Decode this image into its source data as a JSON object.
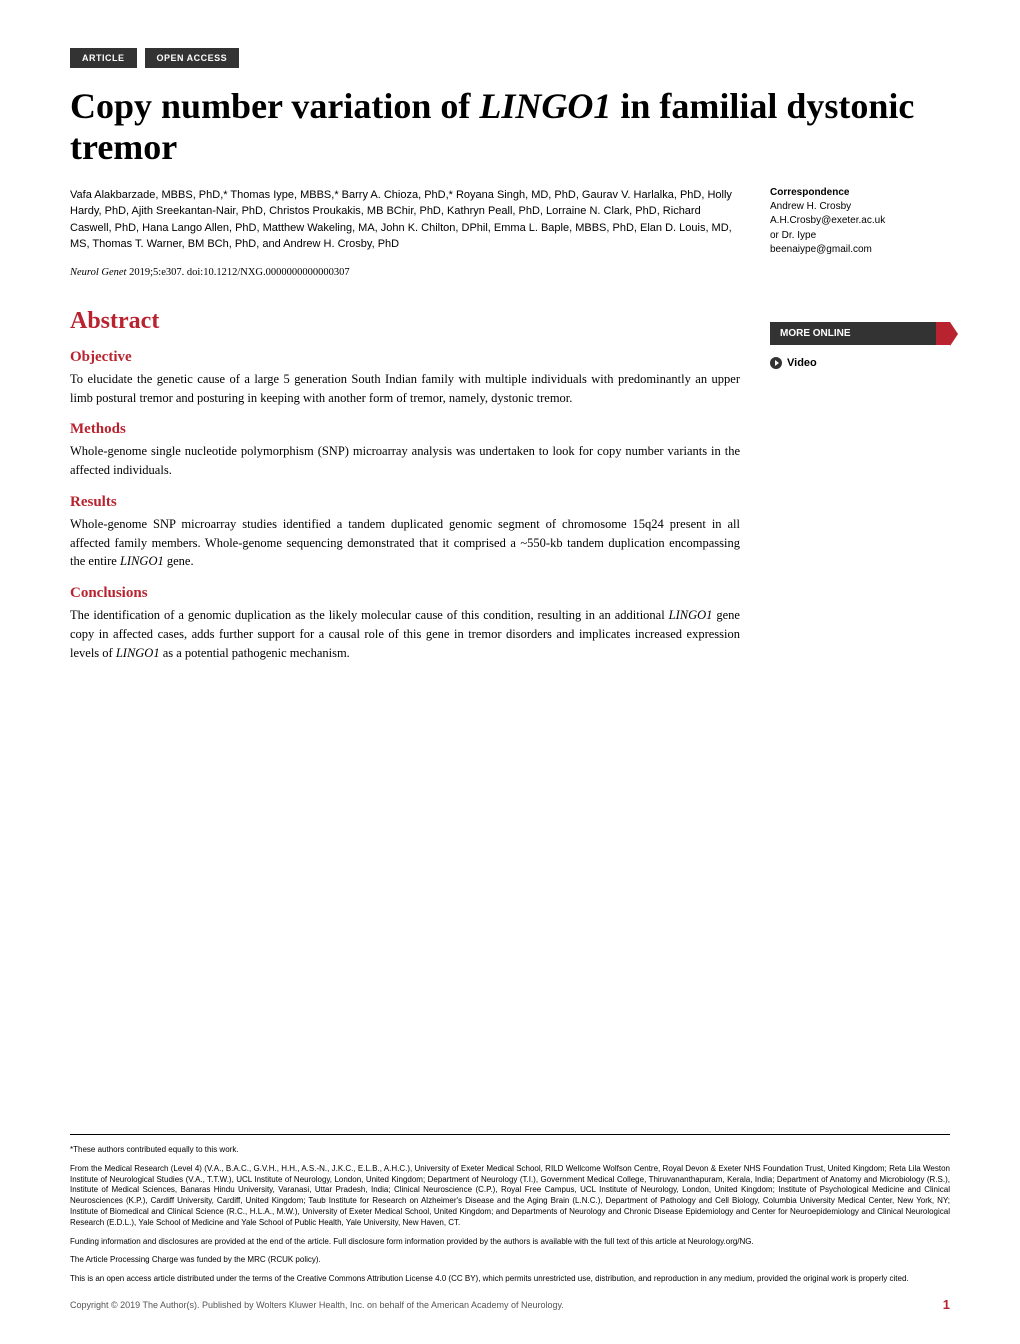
{
  "colors": {
    "accent": "#b8232f",
    "badge_bg": "#333333",
    "text": "#000000",
    "copyright": "#555555",
    "background": "#ffffff"
  },
  "badges": {
    "article": "ARTICLE",
    "open_access": "OPEN ACCESS"
  },
  "title": {
    "pre": "Copy number variation of ",
    "italic": "LINGO1",
    "post": " in familial dystonic tremor"
  },
  "authors": "Vafa Alakbarzade, MBBS, PhD,* Thomas Iype, MBBS,* Barry A. Chioza, PhD,* Royana Singh, MD, PhD, Gaurav V. Harlalka, PhD, Holly Hardy, PhD, Ajith Sreekantan-Nair, PhD, Christos Proukakis, MB BChir, PhD, Kathryn Peall, PhD, Lorraine N. Clark, PhD, Richard Caswell, PhD, Hana Lango Allen, PhD, Matthew Wakeling, MA, John K. Chilton, DPhil, Emma L. Baple, MBBS, PhD, Elan D. Louis, MD, MS, Thomas T. Warner, BM BCh, PhD, and Andrew H. Crosby, PhD",
  "citation": {
    "journal": "Neurol Genet",
    "rest": " 2019;5:e307. doi:10.1212/NXG.0000000000000307"
  },
  "abstract": {
    "heading": "Abstract",
    "sections": {
      "objective": {
        "heading": "Objective",
        "text": "To elucidate the genetic cause of a large 5 generation South Indian family with multiple individuals with predominantly an upper limb postural tremor and posturing in keeping with another form of tremor, namely, dystonic tremor."
      },
      "methods": {
        "heading": "Methods",
        "text": "Whole-genome single nucleotide polymorphism (SNP) microarray analysis was undertaken to look for copy number variants in the affected individuals."
      },
      "results": {
        "heading": "Results",
        "text_pre": "Whole-genome SNP microarray studies identified a tandem duplicated genomic segment of chromosome 15q24 present in all affected family members. Whole-genome sequencing demonstrated that it comprised a ~550-kb tandem duplication encompassing the entire ",
        "text_italic": "LINGO1",
        "text_post": " gene."
      },
      "conclusions": {
        "heading": "Conclusions",
        "text_pre": "The identification of a genomic duplication as the likely molecular cause of this condition, resulting in an additional ",
        "text_italic1": "LINGO1",
        "text_mid": " gene copy in affected cases, adds further support for a causal role of this gene in tremor disorders and implicates increased expression levels of ",
        "text_italic2": "LINGO1",
        "text_post": " as a potential pathogenic mechanism."
      }
    }
  },
  "sidebar": {
    "correspondence": {
      "heading": "Correspondence",
      "lines": "Andrew H. Crosby\nA.H.Crosby@exeter.ac.uk\nor Dr. Iype\nbeenaiype@gmail.com"
    },
    "more_online": "MORE ONLINE",
    "video": "Video"
  },
  "footnotes": {
    "equal": "*These authors contributed equally to this work.",
    "affiliations": "From the Medical Research (Level 4) (V.A., B.A.C., G.V.H., H.H., A.S.-N., J.K.C., E.L.B., A.H.C.), University of Exeter Medical School, RILD Wellcome Wolfson Centre, Royal Devon & Exeter NHS Foundation Trust, United Kingdom; Reta Lila Weston Institute of Neurological Studies (V.A., T.T.W.), UCL Institute of Neurology, London, United Kingdom; Department of Neurology (T.I.), Government Medical College, Thiruvananthapuram, Kerala, India; Department of Anatomy and Microbiology (R.S.), Institute of Medical Sciences, Banaras Hindu University, Varanasi, Uttar Pradesh, India; Clinical Neuroscience (C.P.), Royal Free Campus, UCL Institute of Neurology, London, United Kingdom; Institute of Psychological Medicine and Clinical Neurosciences (K.P.), Cardiff University, Cardiff, United Kingdom; Taub Institute for Research on Alzheimer's Disease and the Aging Brain (L.N.C.), Department of Pathology and Cell Biology, Columbia University Medical Center, New York, NY; Institute of Biomedical and Clinical Science (R.C., H.L.A., M.W.), University of Exeter Medical School, United Kingdom; and Departments of Neurology and Chronic Disease Epidemiology and Center for Neuroepidemiology and Clinical Neurological Research (E.D.L.), Yale School of Medicine and Yale School of Public Health, Yale University, New Haven, CT.",
    "funding": "Funding information and disclosures are provided at the end of the article. Full disclosure form information provided by the authors is available with the full text of this article at Neurology.org/NG.",
    "apc": "The Article Processing Charge was funded by the MRC (RCUK policy).",
    "license": "This is an open access article distributed under the terms of the Creative Commons Attribution License 4.0 (CC BY), which permits unrestricted use, distribution, and reproduction in any medium, provided the original work is properly cited."
  },
  "copyright": "Copyright © 2019 The Author(s). Published by Wolters Kluwer Health, Inc. on behalf of the American Academy of Neurology.",
  "page_number": "1"
}
